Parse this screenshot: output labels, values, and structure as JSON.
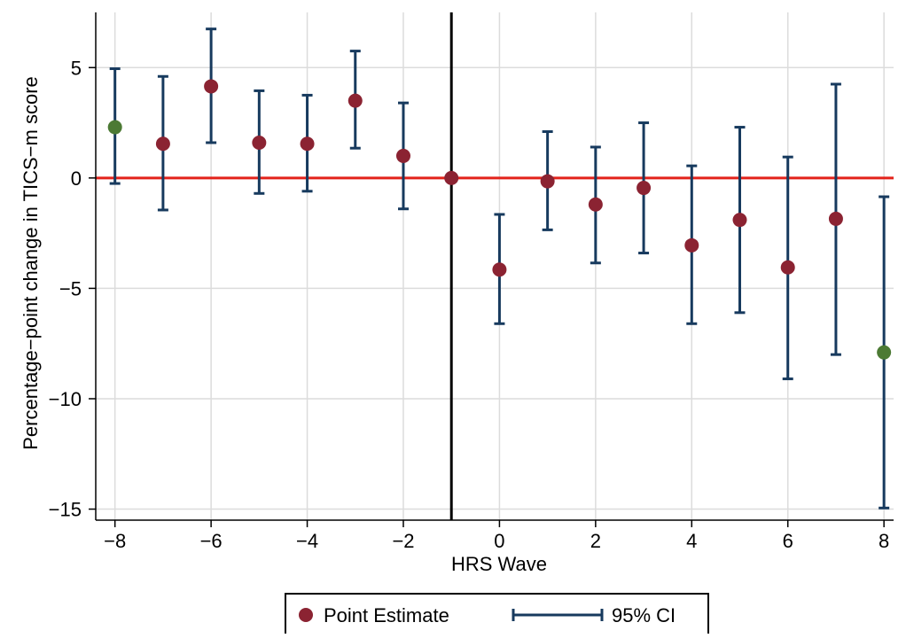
{
  "chart_data": {
    "type": "scatter",
    "xlabel": "HRS Wave",
    "ylabel": "Percentage−point change in TICS−m score",
    "xlim": [
      -8.4,
      8.2
    ],
    "ylim": [
      -15.5,
      7.5
    ],
    "xticks": [
      -8,
      -6,
      -4,
      -2,
      0,
      2,
      4,
      6,
      8
    ],
    "xtick_labels": [
      "−8",
      "−6",
      "−4",
      "−2",
      "0",
      "2",
      "4",
      "6",
      "8"
    ],
    "yticks": [
      5,
      0,
      -5,
      -10,
      -15
    ],
    "ytick_labels": [
      "5",
      "0",
      "−5",
      "−10",
      "−15"
    ],
    "grid": true,
    "reference_lines": {
      "horizontal": {
        "y": 0,
        "color": "#e3231b"
      },
      "vertical": {
        "x": -1,
        "color": "#000000"
      }
    },
    "legend": {
      "position": "bottom",
      "entries": [
        {
          "label": "Point Estimate",
          "kind": "marker",
          "color": "#8b2332"
        },
        {
          "label": "95% CI",
          "kind": "errorbar",
          "color": "#173a5e"
        }
      ]
    },
    "colors": {
      "point": "#8b2332",
      "highlight_point": "#4c7a34",
      "ci": "#173a5e"
    },
    "series": [
      {
        "kind": "point_with_ci",
        "x": [
          -8,
          -7,
          -6,
          -5,
          -4,
          -3,
          -2,
          -1,
          0,
          1,
          2,
          3,
          4,
          5,
          6,
          7,
          8
        ],
        "y": [
          2.3,
          1.55,
          4.15,
          1.6,
          1.55,
          3.5,
          1.0,
          0.0,
          -4.15,
          -0.15,
          -1.2,
          -0.45,
          -3.05,
          -1.9,
          -4.05,
          -1.85,
          -7.9
        ],
        "ci_low": [
          -0.25,
          -1.45,
          1.6,
          -0.7,
          -0.6,
          1.35,
          -1.4,
          null,
          -6.6,
          -2.35,
          -3.85,
          -3.4,
          -6.6,
          -6.1,
          -9.1,
          -8.0,
          -14.95
        ],
        "ci_high": [
          4.95,
          4.6,
          6.75,
          3.95,
          3.75,
          5.75,
          3.4,
          null,
          -1.65,
          2.1,
          1.4,
          2.5,
          0.55,
          2.3,
          0.95,
          4.25,
          -0.85
        ],
        "highlight": [
          true,
          false,
          false,
          false,
          false,
          false,
          false,
          false,
          false,
          false,
          false,
          false,
          false,
          false,
          false,
          false,
          true
        ]
      }
    ]
  }
}
